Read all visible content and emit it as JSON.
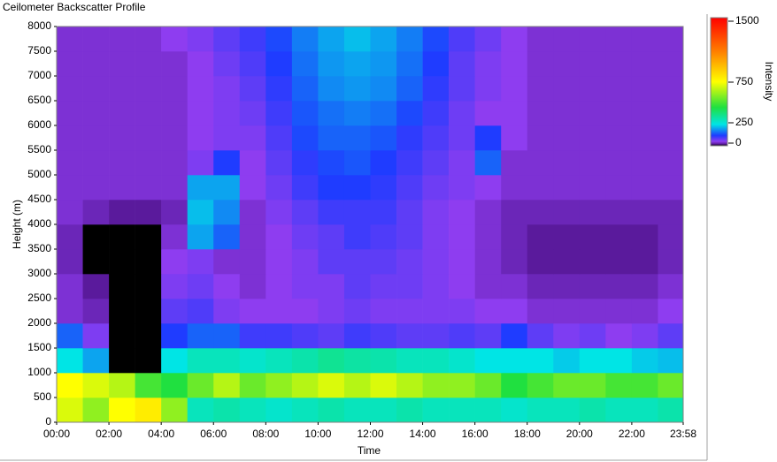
{
  "chart_data": {
    "type": "heatmap",
    "title": "Ceilometer Backscatter Profile",
    "x_label": "Time",
    "y_label": "Height (m)",
    "colorbar_label": "Intensity",
    "x_edges": [
      0,
      60,
      120,
      180,
      240,
      300,
      360,
      420,
      480,
      540,
      600,
      660,
      720,
      780,
      840,
      900,
      960,
      1020,
      1080,
      1140,
      1200,
      1260,
      1320,
      1380,
      1438
    ],
    "y_edges": [
      0,
      500,
      1000,
      1500,
      2000,
      2500,
      3000,
      3500,
      4000,
      4500,
      5000,
      5500,
      6000,
      6500,
      7000,
      7500,
      8000
    ],
    "z": [
      [
        700,
        600,
        750,
        800,
        600,
        300,
        320,
        300,
        280,
        300,
        320,
        300,
        300,
        320,
        300,
        300,
        300,
        280,
        300,
        300,
        320,
        300,
        300,
        320
      ],
      [
        750,
        700,
        650,
        500,
        450,
        550,
        650,
        550,
        600,
        650,
        700,
        650,
        700,
        650,
        600,
        600,
        550,
        450,
        500,
        550,
        550,
        500,
        500,
        550
      ],
      [
        250,
        200,
        0,
        0,
        250,
        300,
        300,
        280,
        300,
        320,
        350,
        330,
        320,
        300,
        300,
        280,
        250,
        250,
        250,
        230,
        250,
        250,
        230,
        220
      ],
      [
        150,
        60,
        0,
        0,
        120,
        150,
        150,
        100,
        100,
        90,
        80,
        100,
        90,
        80,
        80,
        90,
        80,
        120,
        80,
        60,
        70,
        50,
        60,
        80
      ],
      [
        40,
        30,
        0,
        0,
        80,
        90,
        60,
        50,
        50,
        50,
        60,
        70,
        60,
        60,
        60,
        60,
        50,
        50,
        40,
        40,
        40,
        40,
        40,
        50
      ],
      [
        40,
        20,
        0,
        0,
        60,
        70,
        50,
        40,
        50,
        60,
        60,
        80,
        70,
        70,
        60,
        50,
        40,
        40,
        30,
        30,
        30,
        30,
        30,
        40
      ],
      [
        30,
        0,
        0,
        0,
        50,
        60,
        40,
        40,
        50,
        60,
        80,
        80,
        80,
        70,
        60,
        50,
        40,
        30,
        20,
        20,
        20,
        20,
        20,
        30
      ],
      [
        30,
        0,
        0,
        0,
        40,
        200,
        150,
        40,
        50,
        70,
        80,
        100,
        90,
        80,
        60,
        50,
        40,
        30,
        20,
        20,
        20,
        20,
        20,
        30
      ],
      [
        40,
        30,
        20,
        20,
        30,
        220,
        180,
        40,
        60,
        80,
        100,
        100,
        100,
        80,
        60,
        50,
        40,
        30,
        30,
        30,
        30,
        30,
        30,
        30
      ],
      [
        40,
        40,
        40,
        40,
        40,
        200,
        200,
        50,
        70,
        100,
        120,
        120,
        110,
        90,
        70,
        60,
        50,
        40,
        40,
        40,
        40,
        40,
        40,
        40
      ],
      [
        40,
        40,
        40,
        40,
        40,
        60,
        120,
        50,
        80,
        110,
        130,
        140,
        120,
        100,
        80,
        60,
        150,
        40,
        40,
        40,
        40,
        40,
        40,
        40
      ],
      [
        40,
        40,
        40,
        40,
        40,
        50,
        60,
        60,
        90,
        130,
        150,
        150,
        140,
        110,
        90,
        70,
        120,
        50,
        40,
        40,
        40,
        40,
        40,
        40
      ],
      [
        40,
        40,
        40,
        40,
        40,
        50,
        60,
        70,
        100,
        140,
        160,
        170,
        160,
        130,
        100,
        70,
        50,
        50,
        40,
        40,
        40,
        40,
        40,
        40
      ],
      [
        40,
        40,
        40,
        40,
        40,
        50,
        60,
        80,
        110,
        150,
        180,
        190,
        180,
        150,
        110,
        80,
        60,
        50,
        40,
        40,
        40,
        40,
        40,
        40
      ],
      [
        40,
        40,
        40,
        40,
        40,
        50,
        70,
        90,
        120,
        160,
        190,
        200,
        190,
        160,
        120,
        80,
        60,
        50,
        40,
        40,
        40,
        40,
        40,
        40
      ],
      [
        40,
        40,
        40,
        40,
        50,
        60,
        80,
        100,
        130,
        170,
        200,
        220,
        200,
        170,
        130,
        90,
        70,
        50,
        40,
        40,
        40,
        40,
        40,
        40
      ]
    ],
    "xlim": [
      0,
      1438
    ],
    "xticks": [
      {
        "value": 0,
        "label": "00:00"
      },
      {
        "value": 120,
        "label": "02:00"
      },
      {
        "value": 240,
        "label": "04:00"
      },
      {
        "value": 360,
        "label": "06:00"
      },
      {
        "value": 480,
        "label": "08:00"
      },
      {
        "value": 600,
        "label": "10:00"
      },
      {
        "value": 720,
        "label": "12:00"
      },
      {
        "value": 840,
        "label": "14:00"
      },
      {
        "value": 960,
        "label": "16:00"
      },
      {
        "value": 1080,
        "label": "18:00"
      },
      {
        "value": 1200,
        "label": "20:00"
      },
      {
        "value": 1320,
        "label": "22:00"
      },
      {
        "value": 1438,
        "label": "23:58"
      }
    ],
    "ylim": [
      0,
      8000
    ],
    "yticks": [
      0,
      500,
      1000,
      1500,
      2000,
      2500,
      3000,
      3500,
      4000,
      4500,
      5000,
      5500,
      6000,
      6500,
      7000,
      7500,
      8000
    ],
    "clim": [
      0,
      1500
    ],
    "cticks": [
      0,
      250,
      750,
      1500
    ],
    "colorscale": [
      [
        0,
        "#000000"
      ],
      [
        20,
        "#5a1a9c"
      ],
      [
        50,
        "#8e3df0"
      ],
      [
        120,
        "#1f3cff"
      ],
      [
        250,
        "#00e5e5"
      ],
      [
        450,
        "#20e040"
      ],
      [
        750,
        "#ffff00"
      ],
      [
        1100,
        "#ff8000"
      ],
      [
        1500,
        "#ff0000"
      ]
    ]
  }
}
